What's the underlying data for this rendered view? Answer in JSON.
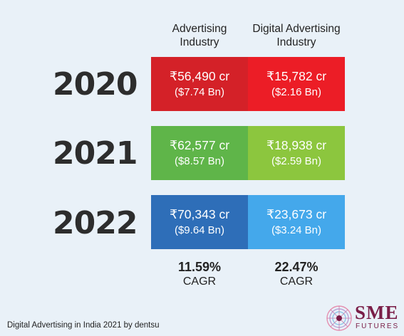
{
  "headers": {
    "col1": [
      "Advertising",
      "Industry"
    ],
    "col2": [
      "Digital Advertising",
      "Industry"
    ]
  },
  "rows": [
    {
      "year": "2020",
      "col1": {
        "inr": "₹56,490 cr",
        "usd": "($7.74 Bn)",
        "color": "#d42128"
      },
      "col2": {
        "inr": "₹15,782 cr",
        "usd": "($2.16 Bn)",
        "color": "#ec1d26"
      }
    },
    {
      "year": "2021",
      "col1": {
        "inr": "₹62,577 cr",
        "usd": "($8.57 Bn)",
        "color": "#5fb549"
      },
      "col2": {
        "inr": "₹18,938 cr",
        "usd": "($2.59 Bn)",
        "color": "#8cc63e"
      }
    },
    {
      "year": "2022",
      "col1": {
        "inr": "₹70,343 cr",
        "usd": "($9.64 Bn)",
        "color": "#2e6eb8"
      },
      "col2": {
        "inr": "₹23,673 cr",
        "usd": "($3.24 Bn)",
        "color": "#44a8eb"
      }
    }
  ],
  "cagr": {
    "col1": {
      "value": "11.59%",
      "label": "CAGR"
    },
    "col2": {
      "value": "22.47%",
      "label": "CAGR"
    }
  },
  "source": "Digital Advertising in India 2021 by dentsu",
  "logo": {
    "name": "SME",
    "sub": "FUTURES",
    "color": "#7a1e48",
    "icon": "sme-futures-logo-icon"
  }
}
